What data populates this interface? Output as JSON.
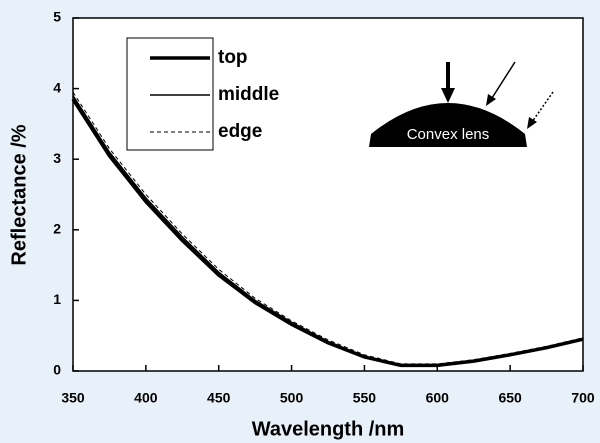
{
  "chart_data": {
    "type": "line",
    "xlabel": "Wavelength /nm",
    "ylabel": "Reflectance /%",
    "annotation": "Convex lens",
    "x": [
      350,
      375,
      400,
      425,
      450,
      475,
      500,
      525,
      550,
      575,
      600,
      625,
      650,
      675,
      700
    ],
    "series": [
      {
        "name": "top",
        "color": "#000000",
        "width": 3.5,
        "dash": false,
        "values": [
          3.85,
          3.05,
          2.4,
          1.85,
          1.36,
          0.97,
          0.66,
          0.4,
          0.2,
          0.08,
          0.08,
          0.14,
          0.23,
          0.33,
          0.45
        ]
      },
      {
        "name": "middle",
        "color": "#000000",
        "width": 1.5,
        "dash": false,
        "values": [
          3.9,
          3.1,
          2.45,
          1.9,
          1.4,
          1.0,
          0.69,
          0.42,
          0.21,
          0.09,
          0.09,
          0.15,
          0.24,
          0.34,
          0.46
        ]
      },
      {
        "name": "edge",
        "color": "#000000",
        "width": 1,
        "dash": true,
        "values": [
          3.95,
          3.15,
          2.5,
          1.94,
          1.44,
          1.03,
          0.71,
          0.44,
          0.23,
          0.1,
          0.1,
          0.16,
          0.25,
          0.35,
          0.47
        ]
      }
    ],
    "xlim": [
      350,
      700
    ],
    "xticks": [
      350,
      400,
      450,
      500,
      550,
      600,
      650,
      700
    ],
    "ylim": [
      0,
      5
    ],
    "yticks": [
      0,
      1,
      2,
      3,
      4,
      5
    ],
    "grid": false
  }
}
